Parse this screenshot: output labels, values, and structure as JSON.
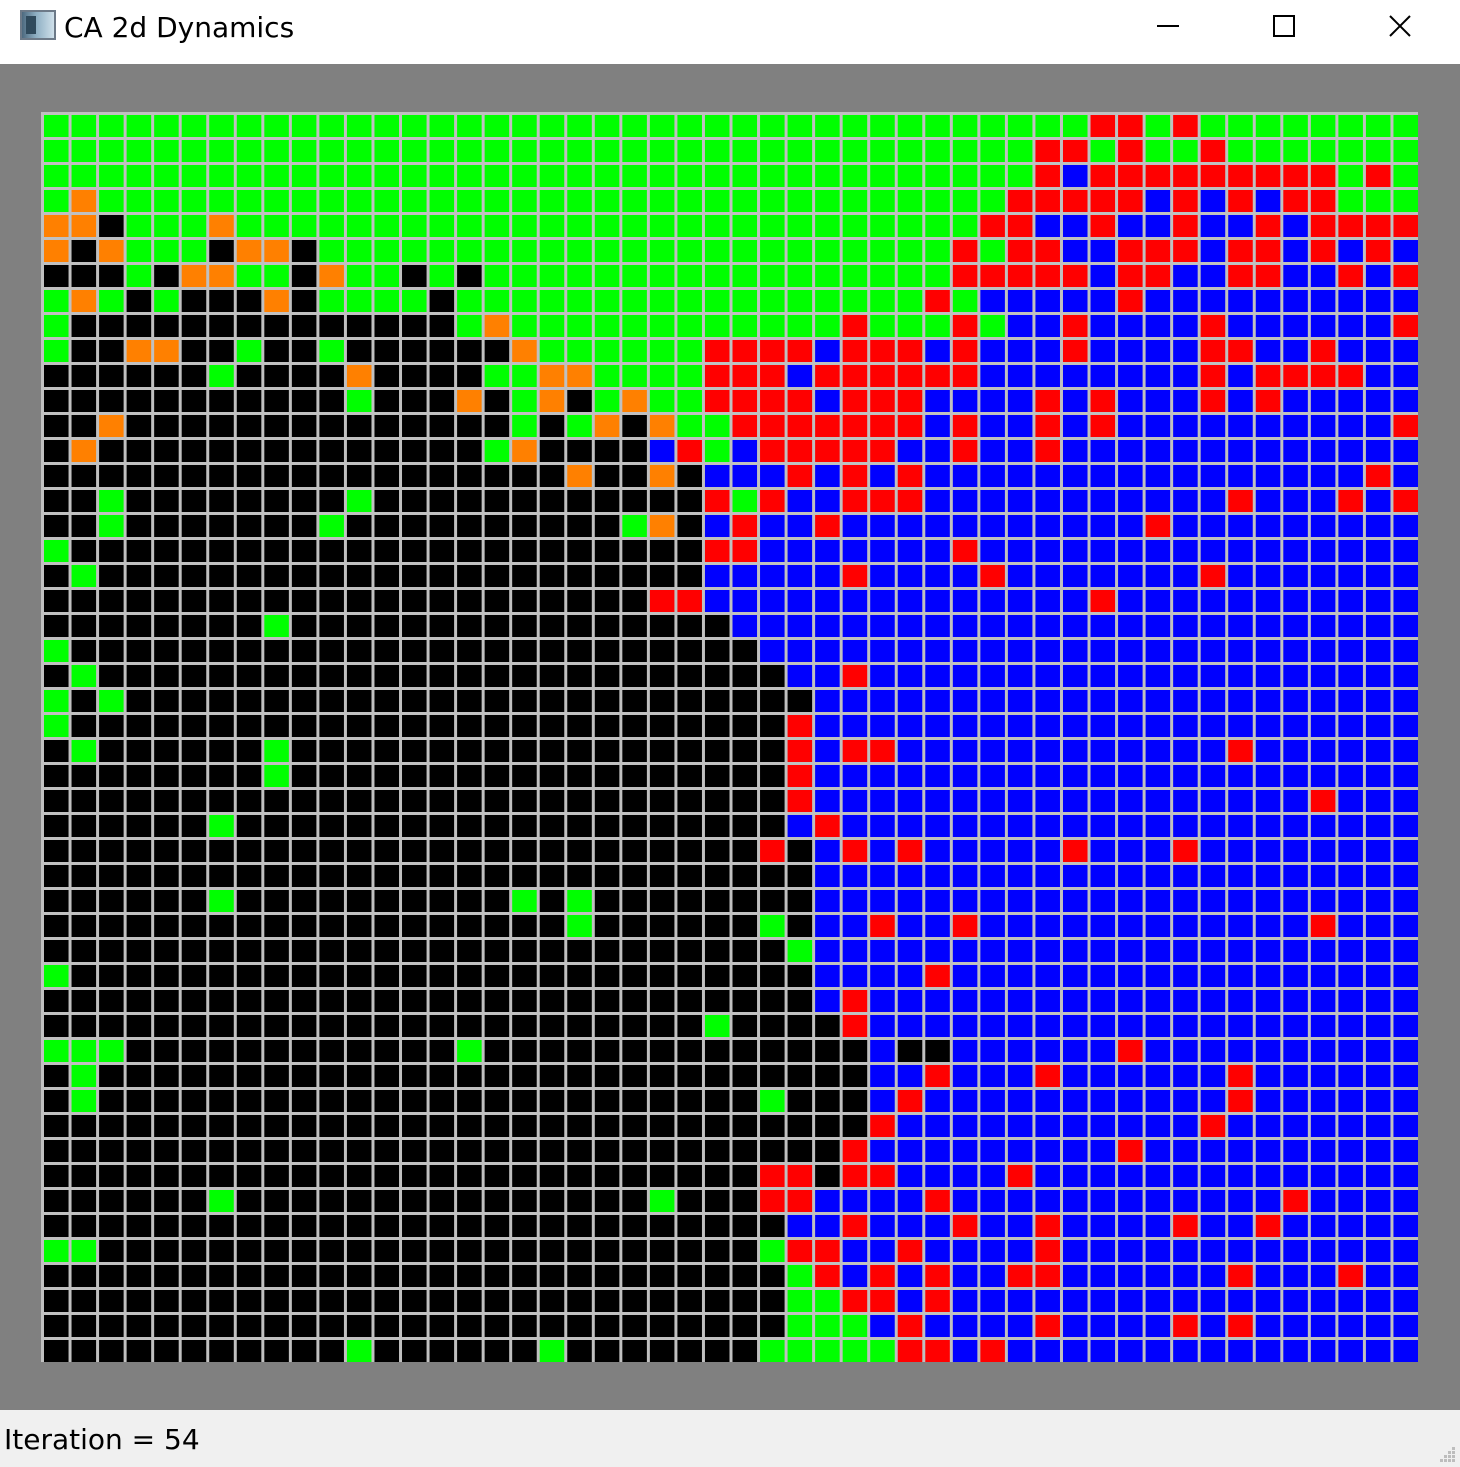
{
  "window": {
    "title": "CA 2d Dynamics",
    "icon": "application-icon",
    "controls": [
      "minimize-icon",
      "maximize-icon",
      "close-icon"
    ]
  },
  "status": {
    "text": "Iteration = 54"
  },
  "colors": {
    "G": "#00ff00",
    "R": "#ff0000",
    "B": "#0000ff",
    "K": "#000000",
    "O": "#ff8000",
    "gridline": "#c0c0c0",
    "background": "#808080"
  },
  "grid": {
    "cols": 50,
    "rows": 50,
    "rows_data": [
      "GGGGGGGGGGGGGGGGGGGGGGGGGGGGGGGGGGGGGGRRGRGGGGGGGG",
      "GGGGGGGGGGGGGGGGGGGGGGGGGGGGGGGGGGGGRRGRGGRGGGGGGG",
      "GGGGGGGGGGGGGGGGGGGGGGGGGGGGGGGGGGGGRBRRRRRRRRRGRG",
      "GOGGGGGGGGGGGGGGGGGGGGGGGGGGGGGGGGGRRRRRBRBRBRRGGG",
      "OOKGGGOGGGGGGGGGGGGGGGGGGGGGGGGGGGRRBBRBBRBBRBRRRR",
      "OKOGGGKOOKGGGGGGGGGGGGGGGGGGGGGGGRGRRBBRRRBRRBRBRB",
      "KKKGKOOGGKOGGKGKGGGGGGGGGGGGGGGGGRRRRRBRRBBRRBBRBR",
      "GOGKGKKKOKGGGGKGGGGGGGGGGGGGGGGGRGBBBBBRBBBBBBBBBB",
      "GKKKKKKKKKKKKKKGOGGGGGGGGGGGGRGGGRGBBRBBBBRBBBBBBR",
      "GKKOOKKGKKGKKKKKKOGGGGGGRRRRBRRRBRBBBRBBBBRRBBRBBB",
      "KKKKKKGKKKKOKKKKGGOOGGGGRRRBRRRRRRBBBBBBBBRBRRRRBB",
      "KKKKKKKKKKKGKKKOKGOKGOGGRRRRBRRRBBBBRBRBBBRBRBBBBB",
      "KKOKKKKKKKKKKKKKKGKGOKOGGRRRRRRRBRBBRBRBBBBBBBBBBR",
      "KOKKKKKKKKKKKKKKGOKKKKBRGBRRRRRBBRBBRBBBBBBBBBBBBB",
      "KKKKKKKKKKKKKKKKKKKOKKOKBBBRBRBRBBBBBBBBBBBBBBBBRB",
      "KKGKKKKKKKKGKKKKKKKKKKKKRGRBBRRRBBBBBBBBBBBRBBBRBRR",
      "KKGKKKKKKKGKKKKKKKKKKGOKBRBBRBBBBBBBBBBBRBBBBBBBBBB",
      "GKKKKKKKKKKKKKKKKKKKKKKKRRBBBBBBBRBBBBBBBBBBBBBBBB",
      "KGKKKKKKKKKKKKKKKKKKKKKKBBBBBRBBBBRBBBBBBBRBBBBBBB",
      "KKKKKKKKKKKKKKKKKKKKKKRRBBBBBBBBBBBBBBRBBBBBBBBBBB",
      "KKKKKKKKGKKKKKKKKKKKKKKKKBBBBBBBBBBBBBBBBBBBBBBBBB",
      "GKKKKKKKKKKKKKKKKKKKKKKKKKBBBBBBBBBBBBBBBBBBBBBBBB",
      "KGKKKKKKKKKKKKKKKKKKKKKKKKKBBRBBBBBBBBBBBBBBBBBBBB",
      "GKGKKKKKKKKKKKKKKKKKKKKKKKKKBBBBBBBBBBBBBBBBBBBBBB",
      "GKKKKKKKKKKKKKKKKKKKKKKKKKKRBBBBBBBBBBBBBBBBBBBBBB",
      "KGKKKKKKGKKKKKKKKKKKKKKKKKKRBRRBBBBBBBBBBBBRBBBBBB",
      "KKKKKKKKGKKKKKKKKKKKKKKKKKKRBBBBBBBBBBBBBBBBBBBBBB",
      "KKKKKKKKKKKKKKKKKKKKKKKKKKKRBBBBBBBBBBBBBBBBBBRBBB",
      "KKKKKKGKKKKKKKKKKKKKKKKKKKKBRBBBBBBBBBBBBBBBBBBBBB",
      "KKKKKKKKKKKKKKKKKKKKKKKKKKRKBRBRBBBBBRBBBRBBBBBBBB",
      "KKKKKKKKKKKKKKKKKKKKKKKKKKKKBBBBBBBBBBBBBBBBBBBBBB",
      "KKKKKKGKKKKKKKKKKGKGKKKKKKKKBBBBBBBBBBBBBBBBBBBBBB",
      "KKKKKKKKKKKKKKKKKKKGKKKKKKGKBBRBBRBBBBBBBBBBBBRBBB",
      "KKKKKKKKKKKKKKKKKKKKKKKKKKKGBBBBBBBBBBBBBBBBBBBBBB",
      "GKKKKKKKKKKKKKKKKKKKKKKKKKKKBBBBRBBBBBBBBBBBBBBBBB",
      "KKKKKKKKKKKKKKKKKKKKKKKKKKKKBRBBBBBBBBBBBBBBBBBBBB",
      "KKKKKKKKKKKKKKKKKKKKKKKKGKKKKRBBBBBBBBBBBBBBBBBBBB",
      "GGGKKKKKKKKKKKKGKKKKKKKKKKKKKKBKKBBBBBBRBBBBBBBBBB",
      "KGKKKKKKKKKKKKKKKKKKKKKKKKKKKKBBRBBBRBBBBBBRBBBBBB",
      "KGKKKKKKKKKKKKKKKKKKKKKKKKGKKKBRBBBBBBBBBBBRBBBBBB",
      "KKKKKKKKKKKKKKKKKKKKKKKKKKKKKKRBBBBBBBBBBBRBBBBBBB",
      "KKKKKKKKKKKKKKKKKKKKKKKKKKKKKRBBBBBBBBBRBBBBBBBBBB",
      "KKKKKKKKKKKKKKKKKKKKKKKKKKRRKRRBBBBRBBBBBBBBBBBBBB",
      "KKKKKKGKKKKKKKKKKKKKKKGKKKRRBBBBRBBBBBBBBBBBBRBBBB",
      "KKKKKKKKKKKKKKKKKKKKKKKKKKKBBRBBBRBBRBBBBRBBRBBBBB",
      "GGKKKKKKKKKKKKKKKKKKKKKKKKGRRBBRBBBBRBBBBBBBBBBBBB",
      "KKKKKKKKKKKKKKKKKKKKKKKKKKKGRBRBRBBRRBBBBBBRBBBRBB",
      "KKKKKKKKKKKKKKKKKKKKKKKKKKKGGRRBRBBBBBBBBBBBBBBBBB",
      "KKKKKKKKKKKKKKKKKKKKKKKKKKKGGGBRBBBBRBBBBRBRBBBBBB",
      "KKKKKKKKKKKGKKKKKKGKKKKKKKGGGGGRRBRBBBBBBBBBBBBBBB"
    ]
  }
}
